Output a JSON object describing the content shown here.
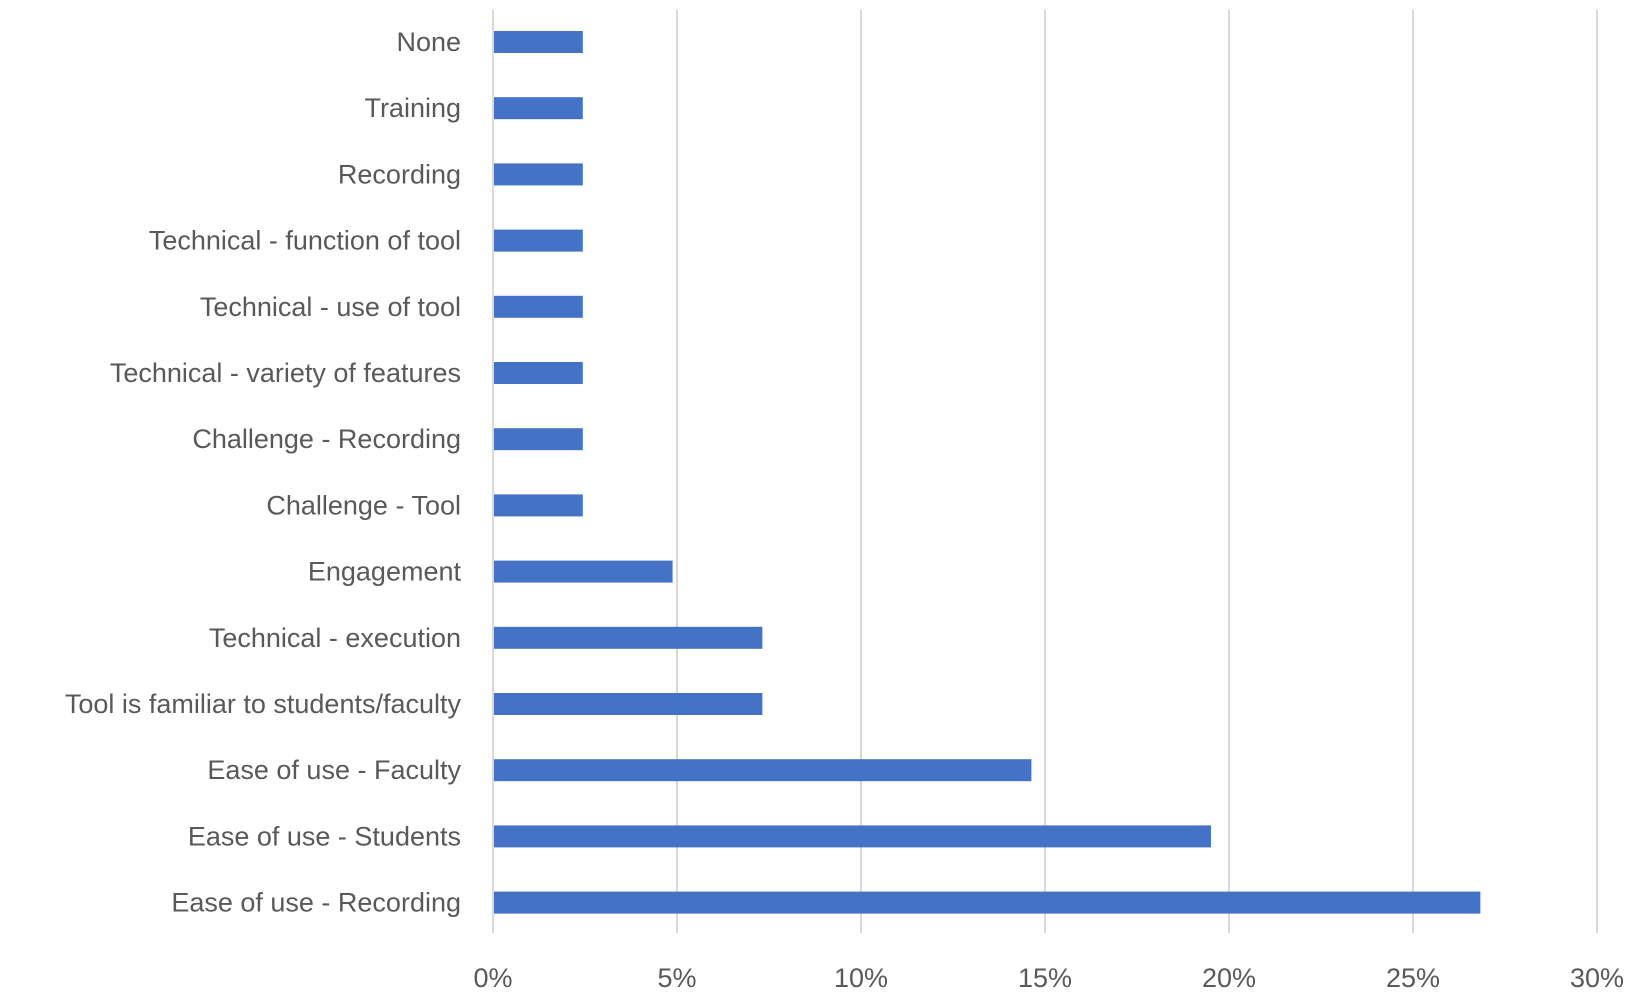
{
  "chart_data": {
    "type": "bar",
    "orientation": "horizontal",
    "title": "",
    "xlabel": "",
    "ylabel": "",
    "xlim": [
      0,
      30
    ],
    "x_ticks": [
      "0%",
      "5%",
      "10%",
      "15%",
      "20%",
      "25%",
      "30%"
    ],
    "grid": true,
    "legend": "none",
    "bar_color": "#4472c4",
    "categories": [
      "None",
      "Training",
      "Recording",
      "Technical - function of tool",
      "Technical - use of tool",
      "Technical - variety of features",
      "Challenge - Recording",
      "Challenge - Tool",
      "Engagement",
      "Technical - execution",
      "Tool is familiar to students/faculty",
      "Ease of use - Faculty",
      "Ease of use - Students",
      "Ease of use - Recording"
    ],
    "values": [
      2.44,
      2.44,
      2.44,
      2.44,
      2.44,
      2.44,
      2.44,
      2.44,
      4.88,
      7.32,
      7.32,
      14.63,
      19.51,
      26.83
    ]
  }
}
